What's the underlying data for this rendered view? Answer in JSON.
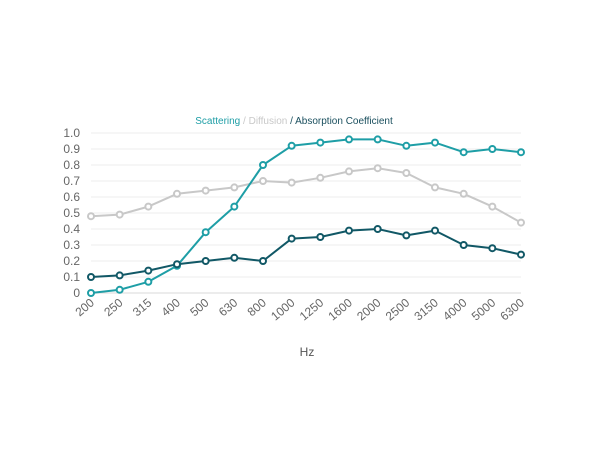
{
  "chart_data": {
    "type": "line",
    "title_parts": [
      {
        "text": "Scattering",
        "color": "#1e9ea6"
      },
      {
        "text": " / ",
        "color": "#c8c8c8"
      },
      {
        "text": "Diffusion",
        "color": "#c8c8c8"
      },
      {
        "text": " / ",
        "color": "#1a4f5e"
      },
      {
        "text": "Absorption Coefficient",
        "color": "#1a4f5e"
      }
    ],
    "xlabel": "Hz",
    "ylabel": "",
    "categories": [
      "200",
      "250",
      "315",
      "400",
      "500",
      "630",
      "800",
      "1000",
      "1250",
      "1600",
      "2000",
      "2500",
      "3150",
      "4000",
      "5000",
      "6300"
    ],
    "ylim": [
      0,
      1.0
    ],
    "yticks": [
      "0",
      "0.1",
      "0.2",
      "0.3",
      "0.4",
      "0.5",
      "0.6",
      "0.7",
      "0.8",
      "0.9",
      "1.0"
    ],
    "grid": true,
    "series": [
      {
        "name": "Diffusion",
        "color": "#c8c8c8",
        "values": [
          0.48,
          0.49,
          0.54,
          0.62,
          0.64,
          0.66,
          0.7,
          0.69,
          0.72,
          0.76,
          0.78,
          0.75,
          0.66,
          0.62,
          0.54,
          0.44
        ]
      },
      {
        "name": "Scattering",
        "color": "#1e9ea6",
        "values": [
          0.0,
          0.02,
          0.07,
          0.17,
          0.38,
          0.54,
          0.8,
          0.92,
          0.94,
          0.96,
          0.96,
          0.92,
          0.94,
          0.88,
          0.9,
          0.88
        ]
      },
      {
        "name": "Absorption Coefficient",
        "color": "#115866",
        "values": [
          0.1,
          0.11,
          0.14,
          0.18,
          0.2,
          0.22,
          0.2,
          0.34,
          0.35,
          0.39,
          0.4,
          0.36,
          0.39,
          0.3,
          0.28,
          0.24
        ]
      }
    ]
  }
}
